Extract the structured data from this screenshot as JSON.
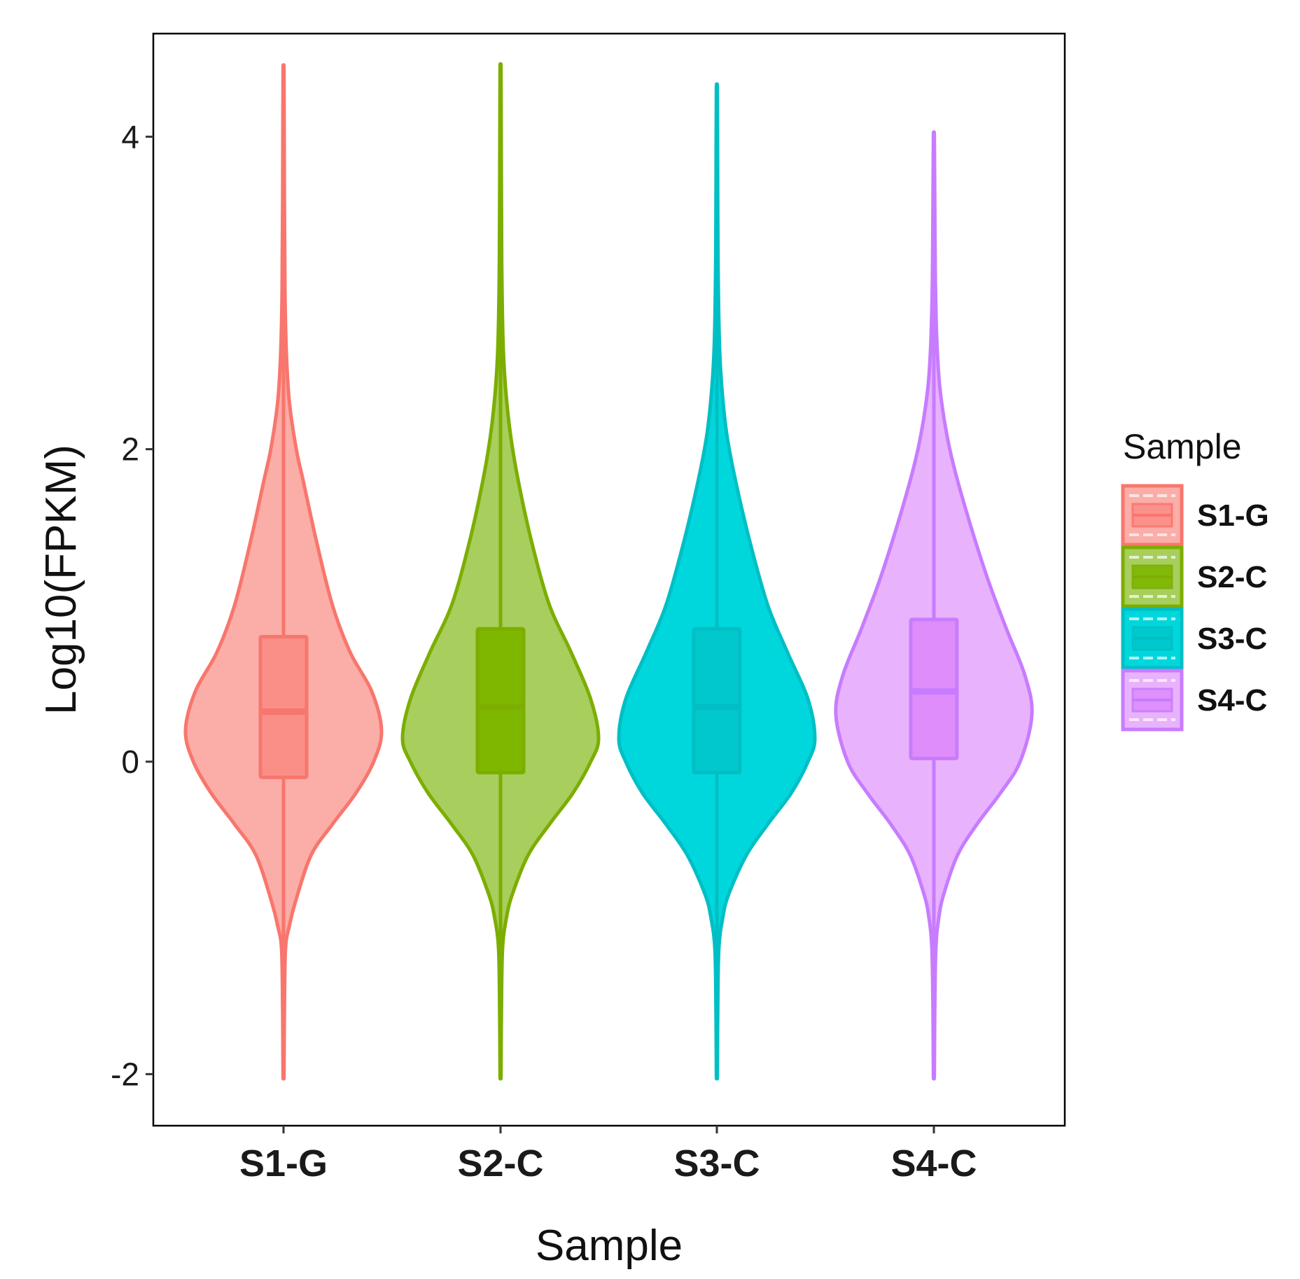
{
  "chart_data": {
    "type": "violin",
    "title": "",
    "xlabel": "Sample",
    "ylabel": "Log10(FPKM)",
    "ylim": [
      -2.33,
      4.66
    ],
    "yticks": [
      -2,
      0,
      2,
      4
    ],
    "ytick_labels": [
      "-2",
      "0",
      "2",
      "4"
    ],
    "grid": false,
    "legend": {
      "title": "Sample",
      "position": "right",
      "entries": [
        "S1-G",
        "S2-C",
        "S3-C",
        "S4-C"
      ]
    },
    "categories": [
      "S1-G",
      "S2-C",
      "S3-C",
      "S4-C"
    ],
    "series": [
      {
        "name": "S1-G",
        "color": "#F8766D",
        "fill": "#FBADA8",
        "box_fill": "#FA8F88",
        "min": -2.0,
        "q1": -0.1,
        "median": 0.32,
        "q3": 0.8,
        "max": 4.4,
        "whisker_low": -1.2,
        "whisker_high": 2.15,
        "density": [
          [
            -2.0,
            0.005
          ],
          [
            -1.6,
            0.009
          ],
          [
            -1.2,
            0.02
          ],
          [
            -1.05,
            0.06
          ],
          [
            -0.9,
            0.12
          ],
          [
            -0.6,
            0.28
          ],
          [
            -0.4,
            0.5
          ],
          [
            -0.2,
            0.74
          ],
          [
            0.0,
            0.92
          ],
          [
            0.2,
            1.0
          ],
          [
            0.45,
            0.9
          ],
          [
            0.7,
            0.68
          ],
          [
            1.0,
            0.5
          ],
          [
            1.4,
            0.34
          ],
          [
            1.8,
            0.2
          ],
          [
            2.0,
            0.13
          ],
          [
            2.3,
            0.06
          ],
          [
            2.6,
            0.03
          ],
          [
            3.0,
            0.015
          ],
          [
            3.6,
            0.009
          ],
          [
            4.4,
            0.005
          ]
        ]
      },
      {
        "name": "S2-C",
        "color": "#7CAE00",
        "fill": "#A8CE5E",
        "box_fill": "#7DB700",
        "min": -2.0,
        "q1": -0.07,
        "median": 0.35,
        "q3": 0.85,
        "max": 4.42,
        "whisker_low": -1.15,
        "whisker_high": 2.2,
        "density": [
          [
            -2.0,
            0.005
          ],
          [
            -1.6,
            0.009
          ],
          [
            -1.2,
            0.02
          ],
          [
            -1.0,
            0.06
          ],
          [
            -0.85,
            0.12
          ],
          [
            -0.6,
            0.28
          ],
          [
            -0.4,
            0.5
          ],
          [
            -0.2,
            0.74
          ],
          [
            0.0,
            0.92
          ],
          [
            0.15,
            1.0
          ],
          [
            0.4,
            0.92
          ],
          [
            0.7,
            0.72
          ],
          [
            1.0,
            0.5
          ],
          [
            1.4,
            0.32
          ],
          [
            1.8,
            0.18
          ],
          [
            2.1,
            0.1
          ],
          [
            2.4,
            0.05
          ],
          [
            2.7,
            0.025
          ],
          [
            3.2,
            0.012
          ],
          [
            3.8,
            0.008
          ],
          [
            4.42,
            0.005
          ]
        ]
      },
      {
        "name": "S3-C",
        "color": "#00BFC4",
        "fill": "#00D7DC",
        "box_fill": "#00C8CC",
        "min": -2.0,
        "q1": -0.07,
        "median": 0.35,
        "q3": 0.85,
        "max": 4.3,
        "whisker_low": -1.15,
        "whisker_high": 2.2,
        "density": [
          [
            -2.0,
            0.005
          ],
          [
            -1.6,
            0.009
          ],
          [
            -1.2,
            0.02
          ],
          [
            -1.0,
            0.06
          ],
          [
            -0.85,
            0.12
          ],
          [
            -0.6,
            0.3
          ],
          [
            -0.4,
            0.52
          ],
          [
            -0.2,
            0.76
          ],
          [
            0.0,
            0.93
          ],
          [
            0.15,
            1.0
          ],
          [
            0.4,
            0.93
          ],
          [
            0.7,
            0.72
          ],
          [
            1.0,
            0.52
          ],
          [
            1.4,
            0.34
          ],
          [
            1.8,
            0.19
          ],
          [
            2.1,
            0.1
          ],
          [
            2.4,
            0.05
          ],
          [
            2.7,
            0.025
          ],
          [
            3.2,
            0.012
          ],
          [
            3.8,
            0.008
          ],
          [
            4.3,
            0.005
          ]
        ]
      },
      {
        "name": "S4-C",
        "color": "#C77CFF",
        "fill": "#E9B2FC",
        "box_fill": "#DE8DFB",
        "min": -2.0,
        "q1": 0.02,
        "median": 0.45,
        "q3": 0.91,
        "max": 4.0,
        "whisker_low": -1.0,
        "whisker_high": 2.25,
        "density": [
          [
            -2.0,
            0.005
          ],
          [
            -1.6,
            0.009
          ],
          [
            -1.2,
            0.02
          ],
          [
            -1.0,
            0.05
          ],
          [
            -0.85,
            0.1
          ],
          [
            -0.6,
            0.24
          ],
          [
            -0.4,
            0.44
          ],
          [
            -0.2,
            0.68
          ],
          [
            0.0,
            0.88
          ],
          [
            0.3,
            1.0
          ],
          [
            0.55,
            0.93
          ],
          [
            0.85,
            0.74
          ],
          [
            1.15,
            0.56
          ],
          [
            1.5,
            0.38
          ],
          [
            1.85,
            0.22
          ],
          [
            2.1,
            0.13
          ],
          [
            2.4,
            0.06
          ],
          [
            2.7,
            0.03
          ],
          [
            3.1,
            0.015
          ],
          [
            3.6,
            0.009
          ],
          [
            4.0,
            0.005
          ]
        ]
      }
    ]
  }
}
